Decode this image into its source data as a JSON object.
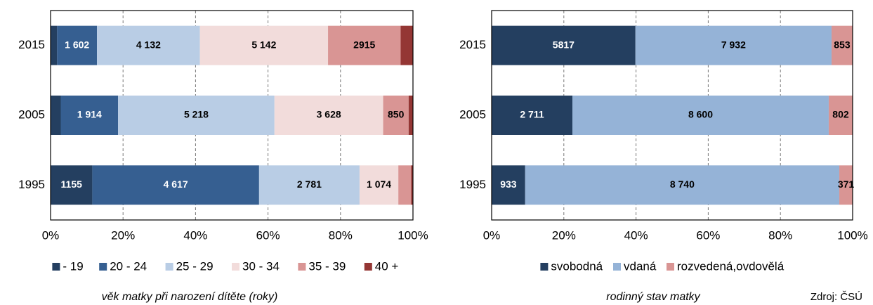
{
  "chart_data": [
    {
      "type": "bar",
      "orientation": "horizontal",
      "stacking": "percent",
      "caption": "věk matky při narození dítěte (roky)",
      "categories": [
        "2015",
        "2005",
        "1995"
      ],
      "xlim": [
        0,
        100
      ],
      "xticks": [
        {
          "value": 0,
          "label": "0%"
        },
        {
          "value": 20,
          "label": "20%"
        },
        {
          "value": 40,
          "label": "40%"
        },
        {
          "value": 60,
          "label": "60%"
        },
        {
          "value": 80,
          "label": "80%"
        },
        {
          "value": 100,
          "label": "100%"
        }
      ],
      "grid": true,
      "legend": "bottom",
      "series": [
        {
          "name": "- 19",
          "color": "#243f60",
          "values": [
            262,
            340,
            1155
          ],
          "value_labels": [
            null,
            null,
            "1155"
          ]
        },
        {
          "name": "20 - 24",
          "color": "#365f91",
          "values": [
            1602,
            1914,
            4617
          ],
          "value_labels": [
            "1 602",
            "1 914",
            "4 617"
          ]
        },
        {
          "name": "25 - 29",
          "color": "#b9cde5",
          "values": [
            4132,
            5218,
            2781
          ],
          "value_labels": [
            "4 132",
            "5 218",
            "2 781"
          ]
        },
        {
          "name": "30 - 34",
          "color": "#f2dcdb",
          "values": [
            5142,
            3628,
            1074
          ],
          "value_labels": [
            "5 142",
            "3 628",
            "1 074"
          ]
        },
        {
          "name": "35 - 39",
          "color": "#d99594",
          "values": [
            2915,
            850,
            355
          ],
          "value_labels": [
            "2915",
            "850",
            null
          ]
        },
        {
          "name": "40 +",
          "color": "#943634",
          "values": [
            495,
            145,
            50
          ],
          "value_labels": [
            null,
            null,
            null
          ]
        }
      ]
    },
    {
      "type": "bar",
      "orientation": "horizontal",
      "stacking": "percent",
      "caption": "rodinný stav matky",
      "source": "Zdroj: ČSÚ",
      "categories": [
        "2015",
        "2005",
        "1995"
      ],
      "xlim": [
        0,
        100
      ],
      "xticks": [
        {
          "value": 0,
          "label": "0%"
        },
        {
          "value": 20,
          "label": "20%"
        },
        {
          "value": 40,
          "label": "40%"
        },
        {
          "value": 60,
          "label": "60%"
        },
        {
          "value": 80,
          "label": "80%"
        },
        {
          "value": 100,
          "label": "100%"
        }
      ],
      "grid": true,
      "legend": "bottom",
      "series": [
        {
          "name": "svobodná",
          "color": "#243f60",
          "values": [
            5817,
            2711,
            933
          ],
          "value_labels": [
            "5817",
            "2 711",
            "933"
          ]
        },
        {
          "name": "vdaná",
          "color": "#95b3d7",
          "values": [
            7932,
            8600,
            8740
          ],
          "value_labels": [
            "7 932",
            "8 600",
            "8 740"
          ]
        },
        {
          "name": "rozvedená,ovdovělá",
          "color": "#d99594",
          "values": [
            853,
            802,
            371
          ],
          "value_labels": [
            "853",
            "802",
            "371"
          ]
        }
      ]
    }
  ]
}
